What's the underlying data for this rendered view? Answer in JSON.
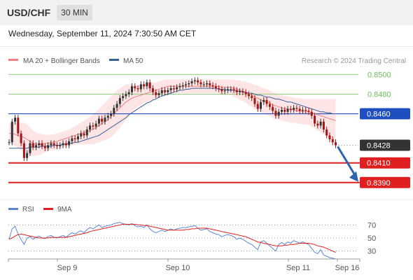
{
  "header": {
    "symbol": "USD/CHF",
    "timeframe": "30 MIN",
    "datetime": "Wednesday, September 11, 2024 7:30:50 AM CET"
  },
  "legend": {
    "ma20": "MA 20 + Bollinger Bands",
    "ma50": "MA 50",
    "credit": "Research © 2024 Trading Central",
    "rsi": "RSI",
    "ma9": "9MA"
  },
  "colors": {
    "ma20": "#f08080",
    "band": "#fddcdc",
    "ma50": "#35609a",
    "bull": "#333333",
    "bear": "#a31515",
    "resistance": "#8fd17a",
    "pivot": "#1f4fbf",
    "support": "#e02020",
    "rsi": "#5b86d6",
    "rsi_ma": "#e02020",
    "current": "#333333",
    "arrow": "#2f65b0"
  },
  "chart_data": [
    {
      "type": "candlestick",
      "ylim": [
        0.8382,
        0.8506
      ],
      "xlabels": [
        "Sep 9",
        "Sep 10",
        "Sep 11",
        "Sep 16"
      ],
      "levels": [
        {
          "value": 0.85,
          "label": "0.8500",
          "kind": "resistance"
        },
        {
          "value": 0.848,
          "label": "0.8480",
          "kind": "resistance"
        },
        {
          "value": 0.846,
          "label": "0.8460",
          "kind": "pivot"
        },
        {
          "value": 0.8428,
          "label": "0.8428",
          "kind": "current"
        },
        {
          "value": 0.841,
          "label": "0.8410",
          "kind": "support"
        },
        {
          "value": 0.839,
          "label": "0.8390",
          "kind": "support"
        }
      ],
      "close": [
        0.8431,
        0.8452,
        0.8456,
        0.844,
        0.843,
        0.8415,
        0.842,
        0.843,
        0.8426,
        0.8428,
        0.843,
        0.8427,
        0.8425,
        0.8428,
        0.843,
        0.8428,
        0.8427,
        0.8428,
        0.843,
        0.8428,
        0.8432,
        0.8435,
        0.8434,
        0.8437,
        0.844,
        0.8438,
        0.8444,
        0.8448,
        0.8447,
        0.845,
        0.8455,
        0.8452,
        0.8456,
        0.8458,
        0.846,
        0.8466,
        0.847,
        0.8476,
        0.8478,
        0.848,
        0.8482,
        0.8488,
        0.8486,
        0.8485,
        0.849,
        0.8488,
        0.8492,
        0.8486,
        0.8482,
        0.8479,
        0.8481,
        0.8484,
        0.8482,
        0.8484,
        0.8486,
        0.8485,
        0.8487,
        0.8488,
        0.8489,
        0.849,
        0.8491,
        0.8493,
        0.8494,
        0.8492,
        0.849,
        0.849,
        0.8491,
        0.8489,
        0.8488,
        0.8486,
        0.8485,
        0.8483,
        0.8484,
        0.8485,
        0.8485,
        0.8484,
        0.8482,
        0.8483,
        0.8482,
        0.848,
        0.8478,
        0.8476,
        0.847,
        0.8465,
        0.8472,
        0.8474,
        0.847,
        0.8467,
        0.8463,
        0.8458,
        0.8462,
        0.8464,
        0.8462,
        0.8465,
        0.8464,
        0.8466,
        0.8465,
        0.8463,
        0.8464,
        0.8463,
        0.8462,
        0.8458,
        0.845,
        0.8448,
        0.8452,
        0.8444,
        0.8438,
        0.8434,
        0.8431,
        0.8428
      ],
      "ma20": [
        0.844,
        0.844,
        0.8439,
        0.8438,
        0.8437,
        0.8436,
        0.8434,
        0.8432,
        0.843,
        0.8429,
        0.8429,
        0.8429,
        0.843,
        0.843,
        0.8431,
        0.8431,
        0.8432,
        0.8433,
        0.8434,
        0.8435,
        0.8436,
        0.8437,
        0.8438,
        0.8439,
        0.844,
        0.8441,
        0.8442,
        0.8443,
        0.8444,
        0.8446,
        0.8448,
        0.845,
        0.8452,
        0.8454,
        0.8457,
        0.846,
        0.8463,
        0.8466,
        0.8469,
        0.8472,
        0.8474,
        0.8476,
        0.8477,
        0.8478,
        0.8479,
        0.848,
        0.8481,
        0.8482,
        0.8483,
        0.8484,
        0.8485,
        0.8486,
        0.8487,
        0.8488,
        0.8488,
        0.8488,
        0.8488,
        0.8488,
        0.8488,
        0.8488,
        0.8488,
        0.8488,
        0.8488,
        0.8488,
        0.8488,
        0.8488,
        0.8488,
        0.8488,
        0.8488,
        0.8488,
        0.8488,
        0.8487,
        0.8487,
        0.8487,
        0.8487,
        0.8486,
        0.8485,
        0.8484,
        0.8483,
        0.8482,
        0.848,
        0.8479,
        0.8477,
        0.8476,
        0.8474,
        0.8473,
        0.8472,
        0.8471,
        0.8469,
        0.8468,
        0.8467,
        0.8466,
        0.8465,
        0.8465,
        0.8464,
        0.8464,
        0.8463,
        0.8463,
        0.8462,
        0.8462,
        0.8462,
        0.8461,
        0.846,
        0.8459,
        0.8458,
        0.8457,
        0.8456,
        0.8455,
        0.8454,
        0.8453
      ],
      "ma50": [
        0.8425,
        0.8425,
        0.8425,
        0.8425,
        0.8425,
        0.8425,
        0.8425,
        0.8426,
        0.8426,
        0.8426,
        0.8426,
        0.8427,
        0.8427,
        0.8427,
        0.8427,
        0.8428,
        0.8428,
        0.8428,
        0.8429,
        0.8429,
        0.843,
        0.843,
        0.8431,
        0.8431,
        0.8432,
        0.8433,
        0.8434,
        0.8435,
        0.8436,
        0.8437,
        0.8438,
        0.844,
        0.8442,
        0.8444,
        0.8446,
        0.8448,
        0.845,
        0.8452,
        0.8454,
        0.8456,
        0.8459,
        0.8461,
        0.8463,
        0.8465,
        0.8467,
        0.8469,
        0.8471,
        0.8472,
        0.8474,
        0.8475,
        0.8477,
        0.8478,
        0.8479,
        0.848,
        0.8481,
        0.8482,
        0.8483,
        0.8484,
        0.8484,
        0.8485,
        0.8485,
        0.8486,
        0.8486,
        0.8486,
        0.8486,
        0.8486,
        0.8486,
        0.8486,
        0.8486,
        0.8486,
        0.8485,
        0.8485,
        0.8485,
        0.8484,
        0.8484,
        0.8484,
        0.8483,
        0.8483,
        0.8482,
        0.8482,
        0.8481,
        0.8481,
        0.848,
        0.8479,
        0.8479,
        0.8478,
        0.8477,
        0.8477,
        0.8476,
        0.8475,
        0.8475,
        0.8474,
        0.8473,
        0.8472,
        0.8472,
        0.8471,
        0.847,
        0.8469,
        0.8468,
        0.8467,
        0.8466,
        0.8465,
        0.8464,
        0.8463,
        0.8462,
        0.8462,
        0.8461,
        0.8461,
        0.846,
        0.846
      ],
      "band_halfwidth": [
        0.001,
        0.0011,
        0.0012,
        0.0013,
        0.0014,
        0.0015,
        0.0015,
        0.0014,
        0.0013,
        0.0012,
        0.0011,
        0.001,
        0.0009,
        0.0008,
        0.0008,
        0.0008,
        0.0008,
        0.0008,
        0.0008,
        0.0008,
        0.0008,
        0.0009,
        0.0009,
        0.001,
        0.0011,
        0.0012,
        0.0013,
        0.0014,
        0.0015,
        0.0016,
        0.0017,
        0.0018,
        0.0019,
        0.002,
        0.0021,
        0.0021,
        0.0021,
        0.002,
        0.0019,
        0.0018,
        0.0016,
        0.0014,
        0.0012,
        0.0011,
        0.001,
        0.0009,
        0.0009,
        0.0009,
        0.0009,
        0.0008,
        0.0008,
        0.0008,
        0.0008,
        0.0007,
        0.0007,
        0.0007,
        0.0007,
        0.0007,
        0.0007,
        0.0007,
        0.0007,
        0.0007,
        0.0007,
        0.0007,
        0.0007,
        0.0007,
        0.0007,
        0.0007,
        0.0007,
        0.0007,
        0.0007,
        0.0008,
        0.0008,
        0.0008,
        0.0008,
        0.0009,
        0.0009,
        0.001,
        0.001,
        0.0011,
        0.0011,
        0.0012,
        0.0012,
        0.0013,
        0.0013,
        0.0013,
        0.0013,
        0.0013,
        0.0013,
        0.0013,
        0.0013,
        0.0013,
        0.0013,
        0.0013,
        0.0013,
        0.0013,
        0.0013,
        0.0013,
        0.0013,
        0.0013,
        0.0013,
        0.0014,
        0.0015,
        0.0016,
        0.0017,
        0.0018,
        0.0019,
        0.002,
        0.0021,
        0.0022
      ]
    },
    {
      "type": "line",
      "ylim": [
        20,
        80
      ],
      "yticks": [
        70,
        50,
        30
      ],
      "series": [
        {
          "name": "RSI",
          "values": [
            48,
            64,
            68,
            56,
            48,
            40,
            50,
            52,
            48,
            51,
            53,
            50,
            49,
            52,
            54,
            51,
            50,
            52,
            54,
            51,
            55,
            58,
            56,
            59,
            61,
            58,
            63,
            66,
            64,
            67,
            70,
            66,
            68,
            69,
            70,
            72,
            73,
            74,
            72,
            71,
            70,
            72,
            69,
            67,
            68,
            66,
            70,
            64,
            60,
            58,
            60,
            62,
            60,
            62,
            64,
            62,
            64,
            65,
            66,
            66,
            67,
            68,
            69,
            65,
            62,
            63,
            64,
            60,
            58,
            56,
            55,
            52,
            54,
            55,
            54,
            52,
            48,
            50,
            48,
            45,
            42,
            40,
            36,
            32,
            44,
            46,
            42,
            38,
            34,
            30,
            40,
            43,
            40,
            44,
            42,
            46,
            44,
            42,
            44,
            42,
            40,
            34,
            28,
            26,
            32,
            24,
            22,
            20,
            19,
            18
          ]
        },
        {
          "name": "9MA",
          "values": [
            48,
            50,
            53,
            55,
            56,
            55,
            54,
            53,
            52,
            51,
            50,
            50,
            50,
            50,
            51,
            51,
            51,
            51,
            51,
            51,
            52,
            53,
            54,
            55,
            56,
            57,
            58,
            60,
            61,
            62,
            63,
            64,
            65,
            66,
            67,
            68,
            69,
            70,
            71,
            71,
            71,
            71,
            71,
            70,
            70,
            69,
            69,
            68,
            67,
            66,
            65,
            64,
            63,
            62,
            62,
            62,
            62,
            62,
            62,
            63,
            63,
            64,
            64,
            65,
            65,
            65,
            65,
            64,
            63,
            62,
            61,
            60,
            59,
            58,
            57,
            56,
            55,
            54,
            53,
            52,
            50,
            48,
            46,
            44,
            43,
            42,
            41,
            40,
            39,
            38,
            38,
            38,
            39,
            39,
            40,
            40,
            41,
            42,
            42,
            42,
            42,
            41,
            40,
            38,
            37,
            36,
            34,
            32,
            30,
            28
          ]
        }
      ]
    }
  ]
}
